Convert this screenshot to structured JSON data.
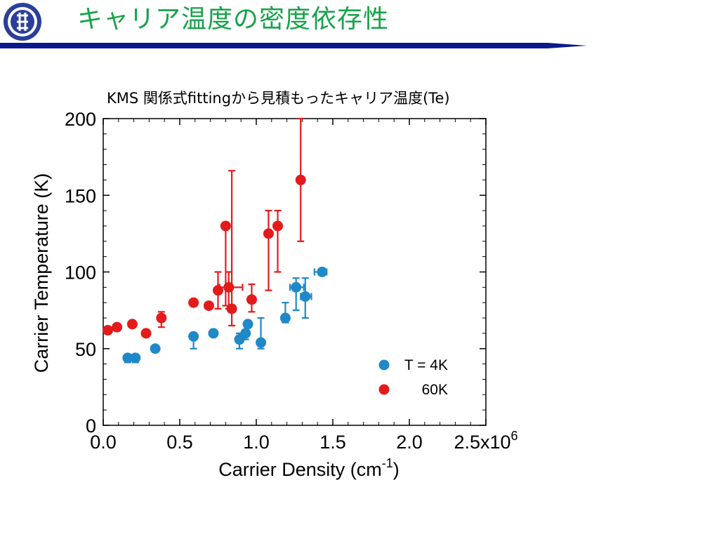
{
  "slide": {
    "title": "キャリア温度の密度依存性"
  },
  "colors": {
    "title_green": "#17a24a",
    "rule_navy": "#0a1a8c",
    "series_4k": "#1f88c8",
    "series_60k": "#e31b1b"
  },
  "logo": {
    "icon": "institution-seal-icon"
  },
  "chart_data": {
    "type": "scatter",
    "title": "KMS 関係式fittingから見積もったキャリア温度(Te)",
    "xlabel": "Carrier Density (cm",
    "xlabel_sup": "-1",
    "xlabel_end": ")",
    "ylabel": "Carrier  Temperature (K)",
    "xlim": [
      0,
      2500000.0
    ],
    "ylim": [
      0,
      200
    ],
    "x_ticks": [
      {
        "value": 0,
        "label": "0.0"
      },
      {
        "value": 500000.0,
        "label": "0.5"
      },
      {
        "value": 1000000.0,
        "label": "1.0"
      },
      {
        "value": 1500000.0,
        "label": "1.5"
      },
      {
        "value": 2000000.0,
        "label": "2.0"
      },
      {
        "value": 2500000.0,
        "label": "2.5x10",
        "sup": "6"
      }
    ],
    "y_ticks": [
      {
        "value": 0,
        "label": "0"
      },
      {
        "value": 50,
        "label": "50"
      },
      {
        "value": 100,
        "label": "100"
      },
      {
        "value": 150,
        "label": "150"
      },
      {
        "value": 200,
        "label": "200"
      }
    ],
    "grid": false,
    "legend_position": "bottom-right",
    "series": [
      {
        "name": "T = 4K",
        "color": "#1f88c8",
        "points": [
          {
            "x": 160000,
            "y": 44,
            "ylo": 41,
            "yhi": 46,
            "xlo": 145000,
            "xhi": 180000
          },
          {
            "x": 210000,
            "y": 44,
            "ylo": 41,
            "yhi": 46,
            "xlo": 190000,
            "xhi": 230000
          },
          {
            "x": 340000,
            "y": 50
          },
          {
            "x": 590000,
            "y": 58,
            "ylo": 50,
            "yhi": 60
          },
          {
            "x": 720000,
            "y": 60
          },
          {
            "x": 890000,
            "y": 56,
            "ylo": 50,
            "yhi": 60
          },
          {
            "x": 930000,
            "y": 60,
            "ylo": 56,
            "yhi": 62
          },
          {
            "x": 945000,
            "y": 66
          },
          {
            "x": 1030000,
            "y": 54,
            "ylo": 50,
            "yhi": 70
          },
          {
            "x": 1190000,
            "y": 70,
            "ylo": 67,
            "yhi": 80
          },
          {
            "x": 1260000,
            "y": 90,
            "ylo": 75,
            "yhi": 96,
            "xlo": 1220000,
            "xhi": 1310000
          },
          {
            "x": 1320000,
            "y": 84,
            "ylo": 70,
            "yhi": 96,
            "xlo": 1290000,
            "xhi": 1360000
          },
          {
            "x": 1430000,
            "y": 100,
            "xlo": 1380000,
            "xhi": 1460000
          }
        ]
      },
      {
        "name": "60K",
        "color": "#e31b1b",
        "points": [
          {
            "x": 30000,
            "y": 62
          },
          {
            "x": 90000,
            "y": 64
          },
          {
            "x": 190000,
            "y": 66
          },
          {
            "x": 280000,
            "y": 60
          },
          {
            "x": 380000,
            "y": 70,
            "ylo": 64,
            "yhi": 74
          },
          {
            "x": 590000,
            "y": 80
          },
          {
            "x": 690000,
            "y": 78
          },
          {
            "x": 750000,
            "y": 88,
            "ylo": 76,
            "yhi": 100
          },
          {
            "x": 800000,
            "y": 130,
            "ylo": 78,
            "yhi": 130
          },
          {
            "x": 820000,
            "y": 90,
            "ylo": 76,
            "yhi": 100,
            "xlo": 760000,
            "xhi": 910000
          },
          {
            "x": 840000,
            "y": 76,
            "ylo": 65,
            "yhi": 166
          },
          {
            "x": 970000,
            "y": 82,
            "ylo": 74,
            "yhi": 92
          },
          {
            "x": 1080000,
            "y": 125,
            "ylo": 88,
            "yhi": 140
          },
          {
            "x": 1140000,
            "y": 130,
            "ylo": 100,
            "yhi": 140
          },
          {
            "x": 1290000,
            "y": 160,
            "ylo": 120,
            "yhi": 200
          }
        ]
      }
    ]
  }
}
